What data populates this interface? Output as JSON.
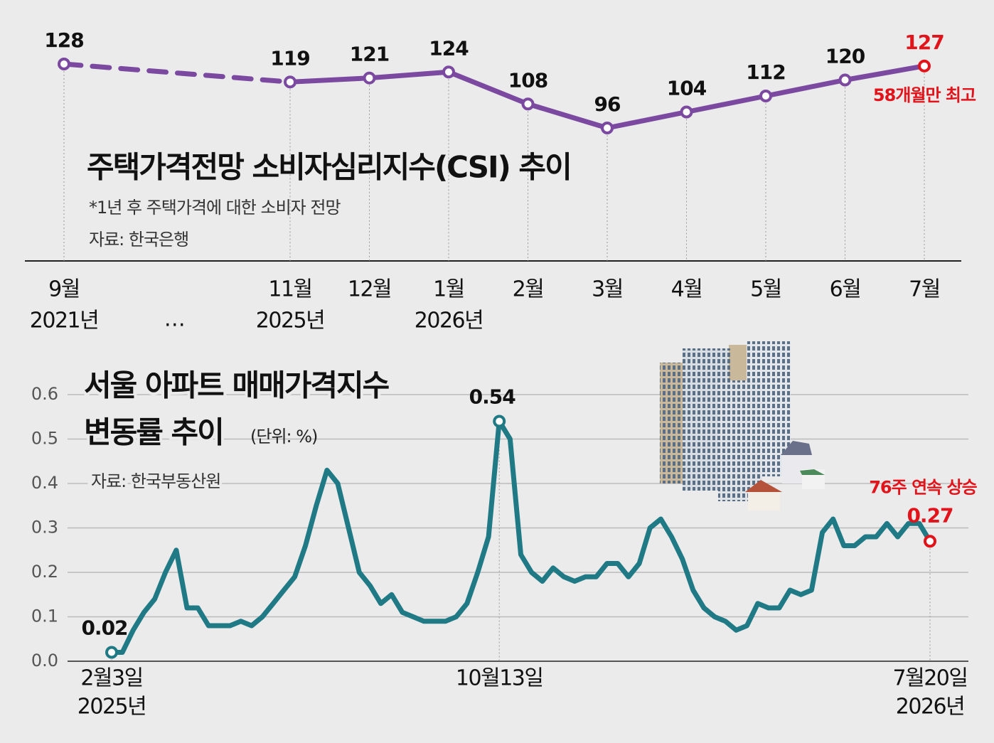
{
  "chart_data": [
    {
      "type": "line",
      "title": "주택가격전망 소비자심리지수(CSI) 추이",
      "subtitle": "*1년 후 주택가격에 대한 소비자 전망",
      "source": "자료: 한국은행",
      "categories": [
        "9월",
        "11월",
        "12월",
        "1월",
        "2월",
        "3월",
        "4월",
        "5월",
        "6월",
        "7월"
      ],
      "year_labels": [
        "2021년",
        "2025년",
        null,
        "2026년",
        null,
        null,
        null,
        null,
        null,
        null
      ],
      "gap_label": "…",
      "values": [
        128,
        119,
        121,
        124,
        108,
        96,
        104,
        112,
        120,
        127
      ],
      "color": "#7b4aa0",
      "highlight_color": "#e2141b",
      "first_segment_style": "dashed",
      "annotations": [
        {
          "text": "58개월만 최고",
          "category": "7월"
        }
      ]
    },
    {
      "type": "line",
      "title": [
        "서울 아파트 매매가격지수",
        "변동률 추이"
      ],
      "unit": "(단위: %)",
      "source": "자료: 한국부동산원",
      "categories": [
        "2월3일",
        null,
        null,
        null,
        null,
        null,
        null,
        null,
        null,
        null,
        null,
        null,
        null,
        null,
        null,
        null,
        null,
        null,
        null,
        null,
        null,
        null,
        null,
        null,
        null,
        null,
        null,
        null,
        null,
        null,
        null,
        null,
        null,
        null,
        null,
        null,
        "10월13일",
        null,
        null,
        null,
        null,
        null,
        null,
        null,
        null,
        null,
        null,
        null,
        null,
        null,
        null,
        null,
        null,
        null,
        null,
        null,
        null,
        null,
        null,
        null,
        null,
        null,
        null,
        null,
        null,
        null,
        null,
        null,
        null,
        null,
        null,
        null,
        null,
        null,
        null,
        null,
        "7월20일"
      ],
      "year_labels": [
        "2025년",
        null,
        null,
        null,
        null,
        null,
        null,
        null,
        null,
        null,
        null,
        null,
        null,
        null,
        null,
        null,
        null,
        null,
        null,
        null,
        null,
        null,
        null,
        null,
        null,
        null,
        null,
        null,
        null,
        null,
        null,
        null,
        null,
        null,
        null,
        null,
        null,
        null,
        null,
        null,
        null,
        null,
        null,
        null,
        null,
        null,
        null,
        null,
        null,
        null,
        null,
        null,
        null,
        null,
        null,
        null,
        null,
        null,
        null,
        null,
        null,
        null,
        null,
        null,
        null,
        null,
        null,
        null,
        null,
        null,
        null,
        null,
        null,
        null,
        null,
        null,
        "2026년"
      ],
      "values": [
        0.02,
        0.02,
        0.07,
        0.11,
        0.14,
        0.2,
        0.25,
        0.12,
        0.12,
        0.08,
        0.08,
        0.08,
        0.09,
        0.08,
        0.1,
        0.13,
        0.16,
        0.19,
        0.26,
        0.35,
        0.43,
        0.4,
        0.3,
        0.2,
        0.17,
        0.13,
        0.15,
        0.11,
        0.1,
        0.09,
        0.09,
        0.09,
        0.1,
        0.13,
        0.2,
        0.28,
        0.54,
        0.5,
        0.24,
        0.2,
        0.18,
        0.21,
        0.19,
        0.18,
        0.19,
        0.19,
        0.22,
        0.22,
        0.19,
        0.22,
        0.3,
        0.32,
        0.28,
        0.23,
        0.16,
        0.12,
        0.1,
        0.09,
        0.07,
        0.08,
        0.13,
        0.12,
        0.12,
        0.16,
        0.15,
        0.16,
        0.29,
        0.32,
        0.26,
        0.26,
        0.28,
        0.28,
        0.31,
        0.28,
        0.31,
        0.31,
        0.27
      ],
      "labeled_points": [
        0,
        36,
        76
      ],
      "color": "#1f7a86",
      "highlight_color": "#e2141b",
      "ylim": [
        0,
        0.6
      ],
      "yticks": [
        {
          "value": 0,
          "label": "0.0"
        },
        0.1,
        0.2,
        0.3,
        0.4,
        0.5,
        0.6
      ],
      "grid": true,
      "annotations": [
        {
          "text": "76주 연속 상승",
          "category": "7월20일"
        }
      ]
    }
  ]
}
